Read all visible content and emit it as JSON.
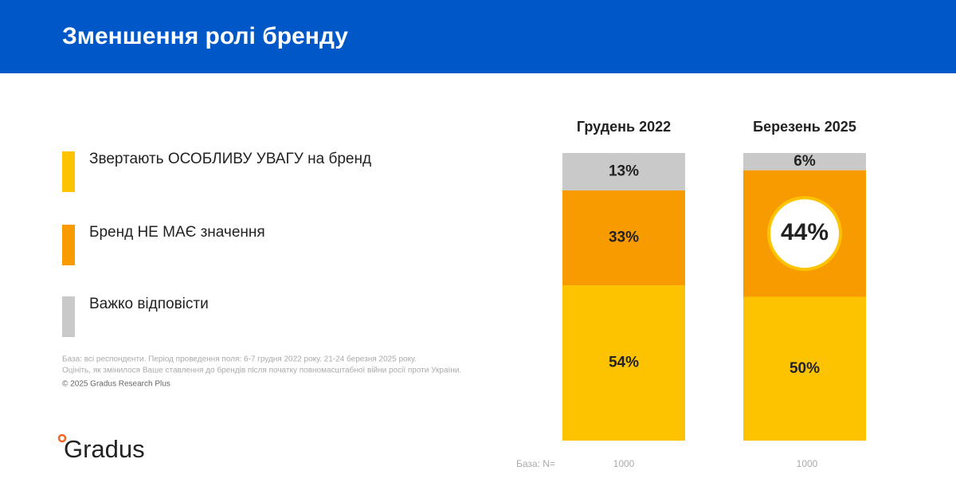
{
  "header": {
    "title": "Зменшення ролі бренду"
  },
  "chart_data": {
    "type": "stacked_bar",
    "categories": [
      "Грудень 2022",
      "Березень 2025"
    ],
    "ylim": [
      0,
      100
    ],
    "series": [
      {
        "name": "Звертають ОСОБЛИВУ УВАГУ на бренд",
        "color": "#fdc300",
        "values": [
          54,
          50
        ],
        "value_labels": [
          "54%",
          "50%"
        ]
      },
      {
        "name": "Бренд НЕ МАЄ значення",
        "color": "#f89b00",
        "values": [
          33,
          44
        ],
        "value_labels": [
          "33%",
          "44%"
        ]
      },
      {
        "name": "Важко відповісти",
        "color": "#c9c9c9",
        "values": [
          13,
          6
        ],
        "value_labels": [
          "13%",
          "6%"
        ]
      }
    ],
    "base_label": "База: N=",
    "base_values": [
      1000,
      1000
    ]
  },
  "notes": [
    "База: всі респонденти. Період проведення поля: 6-7 грудня 2022 року. 21-24 березня 2025 року.",
    "Оцініть, як змінилося Ваше ставлення до брендів після початку повномасштабної війни росії проти України."
  ],
  "copyright": "© 2025 Gradus Research Plus",
  "logo": "Gradus"
}
